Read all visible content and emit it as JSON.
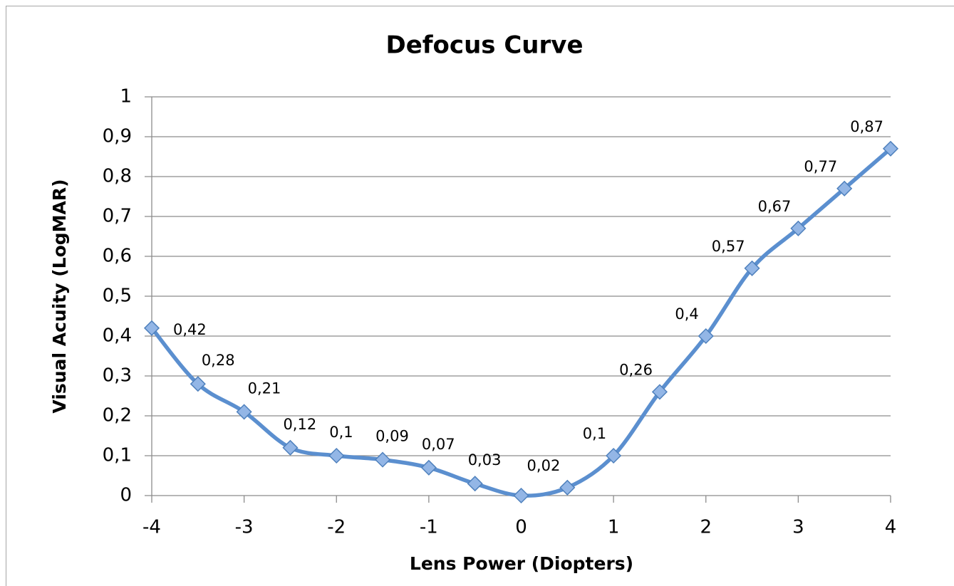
{
  "chart_data": {
    "type": "line",
    "title": "Defocus Curve",
    "x_label": "Lens Power (Diopters)",
    "y_label": "Visual Acuity (LogMAR)",
    "x": [
      -4,
      -3.5,
      -3,
      -2.5,
      -2,
      -1.5,
      -1,
      -0.5,
      0,
      0.5,
      1,
      1.5,
      2,
      2.5,
      3,
      3.5,
      4
    ],
    "series": [
      {
        "name": "Visual Acuity",
        "color": "#5b8fcf",
        "values": [
          0.42,
          0.28,
          0.21,
          0.12,
          0.1,
          0.09,
          0.07,
          0.03,
          0,
          0.02,
          0.1,
          0.26,
          0.4,
          0.57,
          0.67,
          0.77,
          0.87
        ],
        "value_labels": [
          "0,42",
          "0,28",
          "0,21",
          "0,12",
          "0,1",
          "0,09",
          "0,07",
          "0,03",
          null,
          "0,02",
          "0,1",
          "0,26",
          "0,4",
          "0,57",
          "0,67",
          "0,77",
          "0,87"
        ]
      }
    ],
    "xlim": [
      -4,
      4
    ],
    "xticks": [
      -4,
      -3,
      -2,
      -1,
      0,
      1,
      2,
      3,
      4
    ],
    "ylim": [
      0,
      1
    ],
    "yticks": [
      0,
      {
        "value": 0.1,
        "label": "0,1"
      },
      {
        "value": 0.2,
        "label": "0,2"
      },
      {
        "value": 0.3,
        "label": "0,3"
      },
      {
        "value": 0.4,
        "label": "0,4"
      },
      {
        "value": 0.5,
        "label": "0,5"
      },
      {
        "value": 0.6,
        "label": "0,6"
      },
      {
        "value": 0.7,
        "label": "0,7"
      },
      {
        "value": 0.8,
        "label": "0,8"
      },
      {
        "value": 0.9,
        "label": "0,9"
      },
      1
    ],
    "grid": true,
    "smooth": true
  }
}
